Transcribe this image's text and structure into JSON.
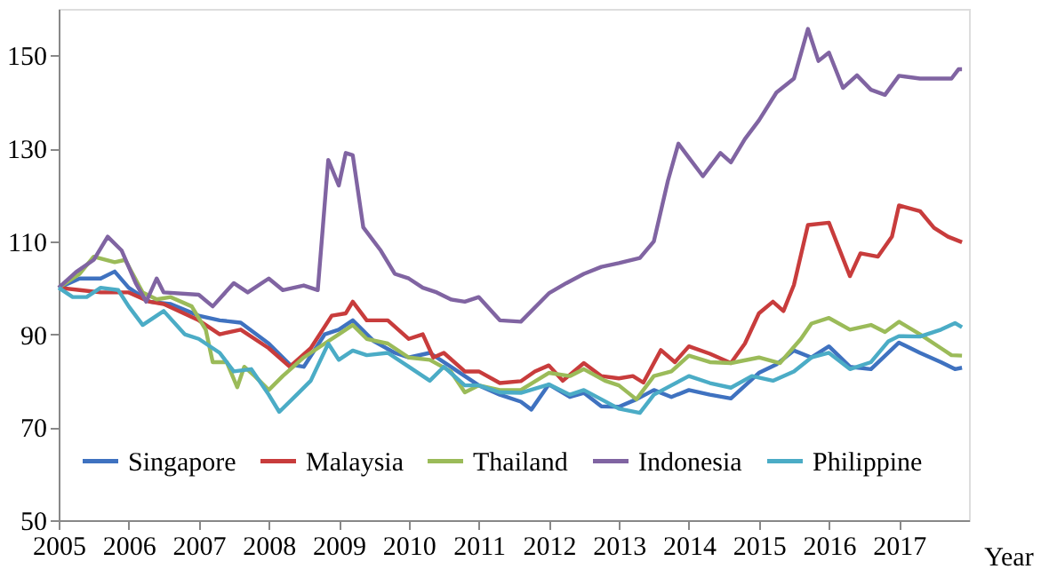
{
  "chart_data": {
    "type": "line",
    "xlabel": "Year",
    "xlim": [
      2005,
      2018
    ],
    "xticks": [
      2005,
      2006,
      2007,
      2008,
      2009,
      2010,
      2011,
      2012,
      2013,
      2014,
      2015,
      2016,
      2017
    ],
    "ylim": [
      50,
      160
    ],
    "yticks": [
      50,
      70,
      90,
      110,
      130,
      150
    ],
    "grid": false,
    "legend": "bottom",
    "marker": "none",
    "line_style": "solid",
    "series": [
      {
        "name": "Singapore",
        "color": "#3f72c0",
        "x": [
          2005,
          2005.3,
          2005.6,
          2005.8,
          2006,
          2006.3,
          2006.6,
          2007,
          2007.3,
          2007.6,
          2008,
          2008.3,
          2008.5,
          2008.8,
          2009,
          2009.2,
          2009.5,
          2009.8,
          2010,
          2010.3,
          2010.6,
          2011,
          2011.3,
          2011.6,
          2011.75,
          2012,
          2012.3,
          2012.5,
          2012.75,
          2013,
          2013.25,
          2013.5,
          2013.75,
          2014,
          2014.3,
          2014.6,
          2015,
          2015.25,
          2015.5,
          2015.75,
          2016,
          2016.3,
          2016.6,
          2017,
          2017.3,
          2017.6,
          2017.8,
          2017.9
        ],
        "values": [
          100,
          102,
          102,
          103.5,
          100,
          97,
          96.5,
          94,
          93,
          92.5,
          88,
          83.5,
          83,
          90,
          91,
          93,
          88.5,
          86,
          85,
          86,
          83,
          79,
          77,
          75.5,
          73.8,
          79.2,
          76.5,
          77.4,
          74.5,
          74.4,
          76,
          78,
          76.5,
          78,
          77,
          76.2,
          81.7,
          83.5,
          86.5,
          85,
          87.4,
          83,
          82.5,
          88.2,
          86,
          84,
          82.5,
          82.8
        ]
      },
      {
        "name": "Malaysia",
        "color": "#c83c3c",
        "x": [
          2005,
          2005.3,
          2005.6,
          2006,
          2006.3,
          2006.5,
          2007,
          2007.3,
          2007.6,
          2008,
          2008.3,
          2008.6,
          2008.9,
          2009.1,
          2009.2,
          2009.4,
          2009.7,
          2010,
          2010.2,
          2010.35,
          2010.5,
          2010.8,
          2011,
          2011.3,
          2011.6,
          2011.8,
          2012,
          2012.2,
          2012.5,
          2012.75,
          2013,
          2013.2,
          2013.35,
          2013.6,
          2013.8,
          2014,
          2014.3,
          2014.6,
          2014.8,
          2015,
          2015.2,
          2015.35,
          2015.5,
          2015.7,
          2016,
          2016.3,
          2016.45,
          2016.7,
          2016.9,
          2017,
          2017.3,
          2017.5,
          2017.7,
          2017.9
        ],
        "values": [
          100,
          99.5,
          99,
          99,
          97,
          96.5,
          93,
          90,
          91,
          87,
          83,
          87,
          94,
          94.5,
          97,
          93,
          93,
          89,
          90,
          85,
          86,
          82,
          82,
          79.5,
          79.9,
          82,
          83.3,
          80,
          83.8,
          81,
          80.5,
          81,
          79.6,
          86.6,
          84,
          87.4,
          85.8,
          83.8,
          88,
          94.5,
          97,
          95,
          100.6,
          113.5,
          114,
          102.5,
          107.4,
          106.7,
          111,
          117.7,
          116.5,
          112.9,
          111,
          109.8
        ]
      },
      {
        "name": "Thailand",
        "color": "#9bbb59",
        "x": [
          2005,
          2005.3,
          2005.5,
          2005.8,
          2005.95,
          2006.2,
          2006.4,
          2006.6,
          2006.9,
          2007.1,
          2007.2,
          2007.4,
          2007.55,
          2007.65,
          2007.8,
          2008,
          2008.2,
          2008.5,
          2008.8,
          2009,
          2009.2,
          2009.4,
          2009.7,
          2010,
          2010.3,
          2010.6,
          2010.8,
          2011,
          2011.3,
          2011.6,
          2012,
          2012.3,
          2012.5,
          2012.8,
          2013,
          2013.25,
          2013.5,
          2013.75,
          2014,
          2014.3,
          2014.6,
          2015,
          2015.3,
          2015.6,
          2015.75,
          2016,
          2016.3,
          2016.6,
          2016.8,
          2017,
          2017.3,
          2017.6,
          2017.75,
          2017.9
        ],
        "values": [
          100,
          103,
          106.7,
          105.5,
          106,
          99,
          97.5,
          98,
          96,
          91,
          84,
          84,
          78.6,
          83,
          81,
          78,
          81,
          85,
          88,
          90,
          92,
          89,
          88,
          85,
          84.5,
          82,
          77.5,
          79,
          78,
          78,
          81.7,
          81,
          82.5,
          80,
          79,
          76,
          81,
          82,
          85.4,
          84,
          83.8,
          85,
          83.8,
          89,
          92.3,
          93.5,
          91,
          92,
          90.5,
          92.7,
          90,
          87,
          85.5,
          85.4
        ]
      },
      {
        "name": "Indonesia",
        "color": "#8064a2",
        "x": [
          2005,
          2005.25,
          2005.5,
          2005.7,
          2005.9,
          2006.1,
          2006.25,
          2006.4,
          2006.5,
          2007,
          2007.2,
          2007.5,
          2007.7,
          2008,
          2008.2,
          2008.5,
          2008.7,
          2008.85,
          2009,
          2009.1,
          2009.2,
          2009.35,
          2009.6,
          2009.8,
          2010,
          2010.2,
          2010.4,
          2010.6,
          2010.8,
          2011,
          2011.3,
          2011.6,
          2012,
          2012.25,
          2012.5,
          2012.75,
          2013,
          2013.3,
          2013.5,
          2013.7,
          2013.85,
          2014,
          2014.2,
          2014.45,
          2014.6,
          2014.8,
          2015,
          2015.25,
          2015.5,
          2015.7,
          2015.85,
          2016,
          2016.2,
          2016.4,
          2016.6,
          2016.8,
          2017,
          2017.3,
          2017.6,
          2017.75,
          2017.85,
          2017.9
        ],
        "values": [
          100,
          103.4,
          106,
          111,
          108,
          101,
          97,
          102,
          99,
          98.5,
          96,
          101,
          99,
          102,
          99.5,
          100.5,
          99.5,
          127.5,
          122,
          129,
          128.5,
          113,
          108,
          103,
          102,
          100,
          99,
          97.5,
          97,
          98,
          93,
          92.7,
          98.8,
          101,
          103,
          104.5,
          105.3,
          106.4,
          110,
          123,
          131,
          128,
          124,
          129,
          127,
          132,
          136,
          142,
          145,
          155.7,
          148.8,
          150.6,
          143,
          145.7,
          142.6,
          141.5,
          145.6,
          145,
          145,
          145,
          147,
          147
        ]
      },
      {
        "name": "Philippine",
        "color": "#4bacc6",
        "x": [
          2005,
          2005.2,
          2005.4,
          2005.6,
          2005.85,
          2006,
          2006.2,
          2006.5,
          2006.8,
          2007,
          2007.3,
          2007.5,
          2007.75,
          2008,
          2008.15,
          2008.4,
          2008.6,
          2008.85,
          2009,
          2009.2,
          2009.4,
          2009.7,
          2010,
          2010.3,
          2010.5,
          2010.8,
          2011,
          2011.3,
          2011.6,
          2012,
          2012.3,
          2012.5,
          2012.75,
          2013,
          2013.3,
          2013.5,
          2013.75,
          2014,
          2014.3,
          2014.6,
          2014.9,
          2015.2,
          2015.5,
          2015.75,
          2016,
          2016.3,
          2016.6,
          2016.85,
          2017,
          2017.3,
          2017.6,
          2017.8,
          2017.9
        ],
        "values": [
          100,
          98,
          98,
          100,
          99.5,
          96,
          92,
          95,
          90,
          89,
          86,
          82,
          82.5,
          77,
          73.3,
          77,
          80,
          88,
          84.5,
          86.5,
          85.5,
          86,
          83,
          80,
          83,
          79,
          79,
          77.5,
          77.4,
          79.2,
          77,
          78,
          76,
          74,
          73.1,
          77,
          79,
          81,
          79.5,
          78.5,
          81,
          80,
          82,
          85,
          86,
          82.5,
          84,
          88.5,
          89.6,
          89.5,
          91,
          92.4,
          91.5
        ]
      }
    ]
  }
}
